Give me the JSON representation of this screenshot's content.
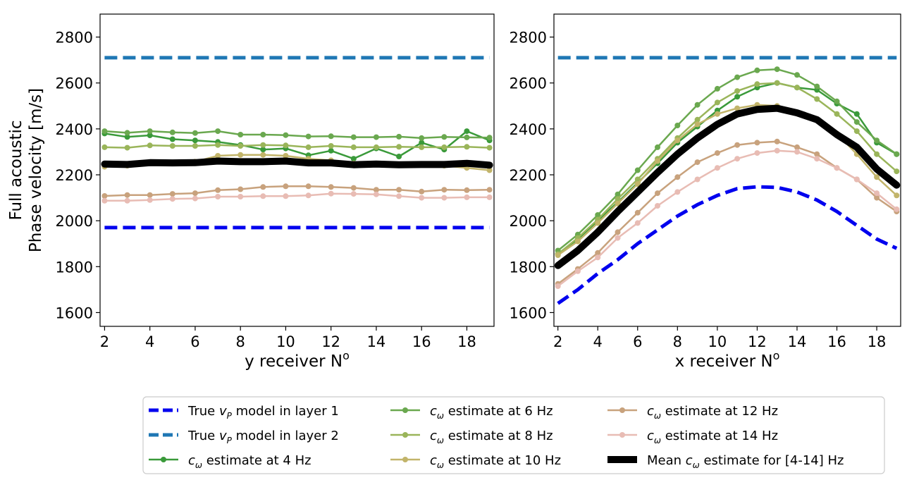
{
  "chart_data": [
    {
      "type": "line",
      "panel": "left",
      "xlabel_text": "y receiver N",
      "xlabel_sup": "o",
      "ylabel_line1": "Full acoustic",
      "ylabel_line2": "Phase velocity [m/s]",
      "xlim": [
        1.8,
        19.2
      ],
      "ylim": [
        1540,
        2900
      ],
      "xticks": [
        2,
        4,
        6,
        8,
        10,
        12,
        14,
        16,
        18
      ],
      "yticks": [
        1600,
        1800,
        2000,
        2200,
        2400,
        2600,
        2800
      ],
      "x": [
        2,
        3,
        4,
        5,
        6,
        7,
        8,
        9,
        10,
        11,
        12,
        13,
        14,
        15,
        16,
        17,
        18,
        19
      ],
      "series": [
        {
          "key": "true1",
          "values": [
            1970,
            1970,
            1970,
            1970,
            1970,
            1970,
            1970,
            1970,
            1970,
            1970,
            1970,
            1970,
            1970,
            1970,
            1970,
            1970,
            1970,
            1970
          ]
        },
        {
          "key": "true2",
          "values": [
            2710,
            2710,
            2710,
            2710,
            2710,
            2710,
            2710,
            2710,
            2710,
            2710,
            2710,
            2710,
            2710,
            2710,
            2710,
            2710,
            2710,
            2710
          ]
        },
        {
          "key": "f4",
          "values": [
            2380,
            2365,
            2372,
            2355,
            2350,
            2343,
            2330,
            2310,
            2315,
            2285,
            2305,
            2270,
            2315,
            2280,
            2340,
            2310,
            2390,
            2350
          ]
        },
        {
          "key": "f6",
          "values": [
            2390,
            2383,
            2390,
            2385,
            2382,
            2390,
            2375,
            2375,
            2373,
            2367,
            2368,
            2364,
            2364,
            2366,
            2360,
            2365,
            2363,
            2362
          ]
        },
        {
          "key": "f8",
          "values": [
            2320,
            2318,
            2328,
            2326,
            2326,
            2330,
            2326,
            2330,
            2328,
            2320,
            2326,
            2320,
            2320,
            2322,
            2320,
            2320,
            2322,
            2318
          ]
        },
        {
          "key": "f10",
          "values": [
            2235,
            2240,
            2250,
            2250,
            2257,
            2283,
            2287,
            2287,
            2283,
            2270,
            2263,
            2250,
            2247,
            2245,
            2243,
            2240,
            2230,
            2220
          ]
        },
        {
          "key": "f12",
          "values": [
            2108,
            2112,
            2112,
            2117,
            2120,
            2133,
            2137,
            2147,
            2150,
            2150,
            2147,
            2143,
            2135,
            2135,
            2127,
            2135,
            2133,
            2135
          ]
        },
        {
          "key": "f14",
          "values": [
            2087,
            2087,
            2090,
            2095,
            2097,
            2105,
            2105,
            2107,
            2107,
            2110,
            2118,
            2117,
            2115,
            2107,
            2100,
            2100,
            2102,
            2102
          ]
        },
        {
          "key": "mean",
          "values": [
            2247,
            2245,
            2253,
            2252,
            2253,
            2260,
            2257,
            2257,
            2260,
            2252,
            2252,
            2244,
            2247,
            2244,
            2245,
            2245,
            2250,
            2242
          ]
        }
      ]
    },
    {
      "type": "line",
      "panel": "right",
      "xlabel_text": "x receiver N",
      "xlabel_sup": "o",
      "xlim": [
        1.8,
        19.2
      ],
      "ylim": [
        1540,
        2900
      ],
      "xticks": [
        2,
        4,
        6,
        8,
        10,
        12,
        14,
        16,
        18
      ],
      "yticks": [
        1600,
        1800,
        2000,
        2200,
        2400,
        2600,
        2800
      ],
      "x": [
        2,
        3,
        4,
        5,
        6,
        7,
        8,
        9,
        10,
        11,
        12,
        13,
        14,
        15,
        16,
        17,
        18,
        19
      ],
      "series": [
        {
          "key": "true1",
          "values": [
            1640,
            1700,
            1770,
            1830,
            1900,
            1960,
            2020,
            2070,
            2110,
            2140,
            2148,
            2145,
            2125,
            2090,
            2040,
            1980,
            1920,
            1880
          ]
        },
        {
          "key": "true2",
          "values": [
            2710,
            2710,
            2710,
            2710,
            2710,
            2710,
            2710,
            2710,
            2710,
            2710,
            2710,
            2710,
            2710,
            2710,
            2710,
            2710,
            2710,
            2710
          ]
        },
        {
          "key": "f4",
          "values": [
            1855,
            1920,
            2000,
            2080,
            2165,
            2250,
            2340,
            2410,
            2480,
            2540,
            2580,
            2600,
            2580,
            2570,
            2510,
            2465,
            2340,
            2290
          ]
        },
        {
          "key": "f6",
          "values": [
            1870,
            1940,
            2025,
            2115,
            2220,
            2320,
            2415,
            2505,
            2575,
            2625,
            2655,
            2660,
            2635,
            2585,
            2520,
            2430,
            2350,
            2290
          ]
        },
        {
          "key": "f8",
          "values": [
            1855,
            1925,
            2005,
            2095,
            2180,
            2270,
            2360,
            2440,
            2515,
            2565,
            2595,
            2600,
            2580,
            2530,
            2465,
            2390,
            2290,
            2215
          ]
        },
        {
          "key": "f10",
          "values": [
            1850,
            1910,
            1990,
            2075,
            2160,
            2260,
            2350,
            2420,
            2465,
            2490,
            2505,
            2500,
            2470,
            2440,
            2380,
            2290,
            2190,
            2110
          ]
        },
        {
          "key": "f12",
          "values": [
            1725,
            1790,
            1860,
            1950,
            2035,
            2120,
            2190,
            2255,
            2295,
            2330,
            2340,
            2345,
            2320,
            2290,
            2230,
            2180,
            2100,
            2040
          ]
        },
        {
          "key": "f14",
          "values": [
            1715,
            1780,
            1840,
            1925,
            1990,
            2065,
            2125,
            2180,
            2230,
            2270,
            2295,
            2305,
            2300,
            2270,
            2230,
            2180,
            2120,
            2050
          ]
        },
        {
          "key": "mean",
          "values": [
            1805,
            1870,
            1950,
            2040,
            2125,
            2210,
            2290,
            2360,
            2420,
            2465,
            2485,
            2490,
            2470,
            2440,
            2375,
            2320,
            2225,
            2155
          ]
        }
      ]
    }
  ],
  "series_styles": {
    "true1": {
      "color": "#0000ee",
      "dash": true,
      "width": 5,
      "markers": false
    },
    "true2": {
      "color": "#1f77b4",
      "dash": true,
      "width": 5,
      "markers": false
    },
    "f4": {
      "color": "#3a9a3a",
      "dash": false,
      "width": 2.5,
      "markers": true
    },
    "f6": {
      "color": "#6aa84f",
      "dash": false,
      "width": 2.5,
      "markers": true
    },
    "f8": {
      "color": "#9ab55a",
      "dash": false,
      "width": 2.5,
      "markers": true
    },
    "f10": {
      "color": "#c2b46a",
      "dash": false,
      "width": 2.5,
      "markers": true
    },
    "f12": {
      "color": "#c8a27d",
      "dash": false,
      "width": 2.5,
      "markers": true
    },
    "f14": {
      "color": "#e8bcb4",
      "dash": false,
      "width": 2.5,
      "markers": true
    },
    "mean": {
      "color": "#000000",
      "dash": false,
      "width": 10,
      "markers": false
    }
  },
  "legend": [
    {
      "key": "true1",
      "pre": "True ",
      "sym": "v",
      "sub": "P",
      "post": " model in layer 1"
    },
    {
      "key": "f6",
      "pre": "",
      "sym": "c",
      "sub": "ω",
      "post": " estimate  at 6 Hz"
    },
    {
      "key": "f12",
      "pre": "",
      "sym": "c",
      "sub": "ω",
      "post": " estimate  at 12 Hz"
    },
    {
      "key": "true2",
      "pre": "True ",
      "sym": "v",
      "sub": "P",
      "post": " model in layer 2"
    },
    {
      "key": "f8",
      "pre": "",
      "sym": "c",
      "sub": "ω",
      "post": " estimate  at 8 Hz"
    },
    {
      "key": "f14",
      "pre": "",
      "sym": "c",
      "sub": "ω",
      "post": " estimate  at 14 Hz"
    },
    {
      "key": "f4",
      "pre": "",
      "sym": "c",
      "sub": "ω",
      "post": " estimate  at 4 Hz"
    },
    {
      "key": "f10",
      "pre": "",
      "sym": "c",
      "sub": "ω",
      "post": " estimate  at 10 Hz"
    },
    {
      "key": "mean",
      "pre": "Mean ",
      "sym": "c",
      "sub": "ω",
      "post": " estimate for [4-14] Hz"
    }
  ]
}
